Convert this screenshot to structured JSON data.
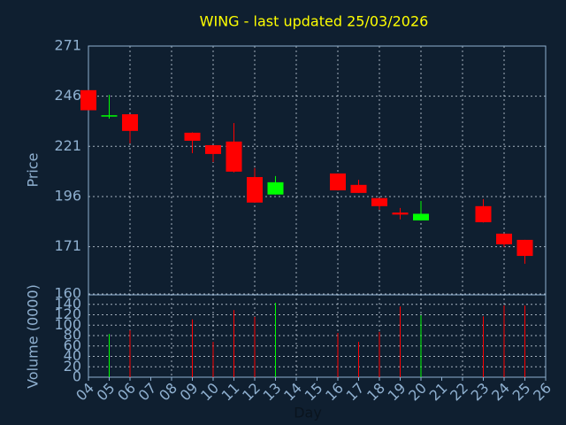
{
  "chart_data": [
    {
      "type": "candlestick",
      "title": "WING - last updated 25/03/2026",
      "title_color": "#ffff00",
      "ylabel": "Price",
      "x": [
        4,
        5,
        6,
        9,
        10,
        11,
        12,
        13,
        16,
        17,
        18,
        19,
        20,
        23,
        24,
        25
      ],
      "open": [
        249,
        236,
        237,
        227.8,
        221.6,
        223.4,
        205.7,
        197,
        207.5,
        201.8,
        195.2,
        188,
        184.1,
        191.2,
        177.5,
        174.4
      ],
      "high": [
        249,
        246.7,
        237,
        228,
        221.6,
        232.6,
        210.2,
        206.2,
        207.5,
        204.3,
        195.2,
        190.3,
        193.8,
        194.7,
        177.5,
        174.4
      ],
      "low": [
        239,
        234.8,
        222.5,
        217.6,
        213.2,
        208,
        193,
        197,
        199,
        197.8,
        189.4,
        184.6,
        184,
        183,
        170.8,
        162.5
      ],
      "close": [
        239,
        236.5,
        228.7,
        223.8,
        217.2,
        208.4,
        193,
        203.1,
        199.1,
        197.8,
        191.2,
        187,
        187.4,
        183.2,
        172.2,
        166.4
      ],
      "up_color": "#00ff00",
      "down_color": "#ff0000",
      "xlim": [
        4,
        26
      ],
      "ylim": [
        147,
        271
      ],
      "yticks": [
        171,
        196,
        221,
        246,
        271
      ],
      "grid": true
    },
    {
      "type": "bar",
      "ylabel": "Volume (0000)",
      "xlabel": "Day",
      "x": [
        4,
        5,
        6,
        9,
        10,
        11,
        12,
        13,
        16,
        17,
        18,
        19,
        20,
        23,
        24,
        25
      ],
      "values": [
        null,
        83,
        90,
        111,
        68,
        129,
        116,
        143,
        85,
        68,
        87,
        136,
        119,
        117,
        138,
        138
      ],
      "xlim": [
        4,
        26
      ],
      "ylim": [
        0,
        160
      ],
      "yticks": [
        0,
        20,
        40,
        60,
        80,
        100,
        120,
        140,
        160
      ],
      "xticks": [
        {
          "value": 4,
          "label": "04"
        },
        {
          "value": 5,
          "label": "05"
        },
        {
          "value": 6,
          "label": "06"
        },
        {
          "value": 7,
          "label": "07"
        },
        {
          "value": 8,
          "label": "08"
        },
        {
          "value": 9,
          "label": "09"
        },
        10,
        11,
        12,
        13,
        14,
        15,
        16,
        17,
        18,
        19,
        20,
        21,
        22,
        23,
        24,
        25,
        26
      ],
      "grid": true
    }
  ]
}
